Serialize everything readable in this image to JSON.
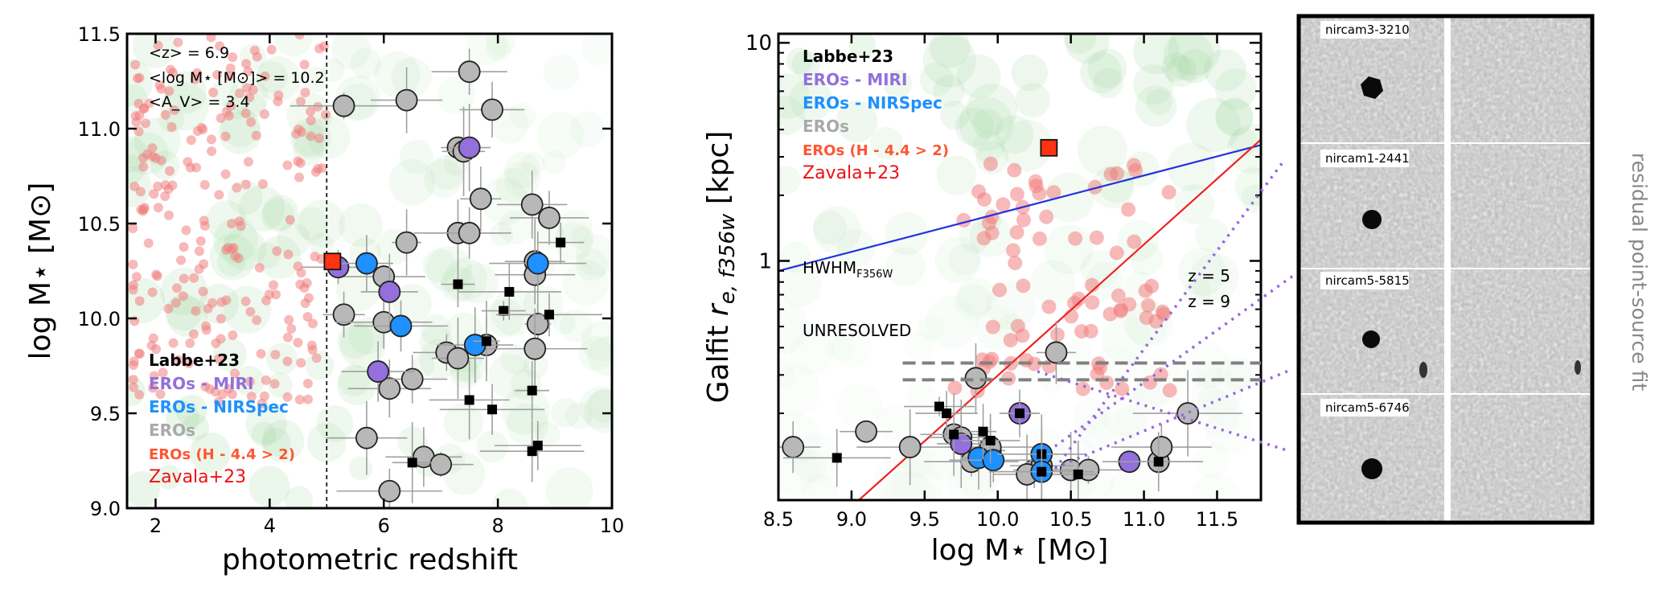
{
  "chart_data": [
    {
      "type": "scatter",
      "xlabel": "photometric redshift",
      "ylabel": "log M⋆ [M⊙]",
      "xlim": [
        1.5,
        10
      ],
      "ylim": [
        9.0,
        11.5
      ],
      "xticks": [
        2,
        4,
        6,
        8,
        10
      ],
      "yticks": [
        9.0,
        9.5,
        10.0,
        10.5,
        11.0,
        11.5
      ],
      "xtick_labels": [
        "2",
        "4",
        "6",
        "8",
        "10"
      ],
      "ytick_labels": [
        "9.0",
        "9.5",
        "10.0",
        "10.5",
        "11.0",
        "11.5"
      ],
      "annotations": [
        "<z> = 6.9",
        "<log M⋆ [M⊙]> = 10.2",
        "<A_V> = 3.4"
      ],
      "vline_x": 5.0,
      "legend_placement": "bottom-left",
      "legend_entries": [
        {
          "label": "Labbe+23",
          "color": "#000000"
        },
        {
          "label": "EROs - MIRI",
          "color": "#9370db"
        },
        {
          "label": "EROs - NIRSpec",
          "color": "#1e90ff"
        },
        {
          "label": "EROs",
          "color": "#a9a9a9"
        },
        {
          "label": "EROs (H - 4.4 > 2)",
          "color": "#ff5533"
        },
        {
          "label": "Zavala+23",
          "color": "#ee1111"
        }
      ],
      "series": [
        {
          "kind": "eros_gray",
          "points": [
            [
              5.3,
              11.12
            ],
            [
              6.4,
              11.15
            ],
            [
              7.5,
              11.3
            ],
            [
              7.9,
              11.1
            ],
            [
              7.3,
              10.9
            ],
            [
              7.4,
              10.88
            ],
            [
              7.7,
              10.63
            ],
            [
              8.6,
              10.6
            ],
            [
              8.9,
              10.53
            ],
            [
              7.3,
              10.45
            ],
            [
              6.4,
              10.4
            ],
            [
              7.5,
              10.45
            ],
            [
              8.65,
              10.3
            ],
            [
              8.65,
              10.23
            ],
            [
              6.0,
              10.22
            ],
            [
              5.3,
              10.02
            ],
            [
              6.0,
              9.98
            ],
            [
              8.7,
              9.97
            ],
            [
              7.8,
              9.86
            ],
            [
              8.65,
              9.84
            ],
            [
              7.1,
              9.82
            ],
            [
              7.3,
              9.79
            ],
            [
              6.1,
              9.63
            ],
            [
              6.5,
              9.68
            ],
            [
              5.7,
              9.37
            ],
            [
              6.7,
              9.27
            ],
            [
              7.0,
              9.23
            ],
            [
              6.1,
              9.09
            ]
          ]
        },
        {
          "kind": "eros_miri",
          "points": [
            [
              7.5,
              10.9
            ],
            [
              5.2,
              10.27
            ],
            [
              6.1,
              10.14
            ],
            [
              5.9,
              9.72
            ]
          ]
        },
        {
          "kind": "eros_nirspec",
          "points": [
            [
              5.7,
              10.29
            ],
            [
              8.7,
              10.29
            ],
            [
              6.3,
              9.96
            ],
            [
              7.6,
              9.86
            ]
          ]
        },
        {
          "kind": "labbe",
          "points": [
            [
              9.1,
              10.4
            ],
            [
              7.3,
              10.18
            ],
            [
              8.2,
              10.14
            ],
            [
              8.1,
              10.04
            ],
            [
              8.9,
              10.02
            ],
            [
              7.8,
              9.88
            ],
            [
              7.5,
              9.57
            ],
            [
              7.9,
              9.52
            ],
            [
              8.6,
              9.62
            ],
            [
              8.6,
              9.3
            ],
            [
              8.7,
              9.33
            ],
            [
              6.5,
              9.24
            ]
          ]
        },
        {
          "kind": "ero_red_square",
          "points": [
            [
              5.1,
              10.3
            ]
          ]
        }
      ]
    },
    {
      "type": "scatter",
      "xlabel": "log M⋆ [M⊙]",
      "ylabel": "Galfit r_e,f356w [kpc]",
      "xlim": [
        8.5,
        11.8
      ],
      "ylim": [
        0.08,
        11.0
      ],
      "yscale": "log",
      "xticks": [
        8.5,
        9.0,
        9.5,
        10.0,
        10.5,
        11.0,
        11.5
      ],
      "xtick_labels": [
        "8.5",
        "9.0",
        "9.5",
        "10.0",
        "10.5",
        "11.0",
        "11.5"
      ],
      "yticks": [
        1,
        10
      ],
      "ytick_labels": [
        "1",
        "10"
      ],
      "hwhm_label": "HWHM",
      "hwhm_subscript": "F356W",
      "hwhm_lines": [
        {
          "label": "z = 5",
          "y": 0.34
        },
        {
          "label": "z = 9",
          "y": 0.285
        }
      ],
      "unresolved_label": "UNRESOLVED",
      "legend_placement": "top-left",
      "legend_entries": [
        {
          "label": "Labbe+23",
          "color": "#000000"
        },
        {
          "label": "EROs - MIRI",
          "color": "#9370db"
        },
        {
          "label": "EROs - NIRSpec",
          "color": "#1e90ff"
        },
        {
          "label": "EROs",
          "color": "#a9a9a9"
        },
        {
          "label": "EROs (H - 4.4 > 2)",
          "color": "#ff5533"
        },
        {
          "label": "Zavala+23",
          "color": "#ee1111"
        }
      ],
      "series": [
        {
          "kind": "eros_gray",
          "points": [
            [
              8.6,
              0.14
            ],
            [
              9.1,
              0.165
            ],
            [
              9.4,
              0.14
            ],
            [
              9.85,
              0.29
            ],
            [
              10.4,
              0.38
            ],
            [
              11.3,
              0.2
            ],
            [
              9.7,
              0.16
            ],
            [
              9.75,
              0.155
            ],
            [
              9.95,
              0.135
            ],
            [
              10.25,
              0.11
            ],
            [
              10.5,
              0.11
            ],
            [
              10.62,
              0.11
            ],
            [
              11.1,
              0.12
            ],
            [
              11.12,
              0.14
            ],
            [
              10.3,
              0.115
            ],
            [
              9.82,
              0.12
            ],
            [
              9.95,
              0.14
            ],
            [
              10.2,
              0.105
            ]
          ]
        },
        {
          "kind": "eros_miri",
          "points": [
            [
              10.15,
              0.2
            ],
            [
              9.75,
              0.145
            ],
            [
              10.9,
              0.12
            ]
          ]
        },
        {
          "kind": "eros_nirspec",
          "points": [
            [
              9.87,
              0.125
            ],
            [
              9.97,
              0.122
            ],
            [
              10.3,
              0.13
            ],
            [
              10.3,
              0.108
            ]
          ]
        },
        {
          "kind": "labbe",
          "points": [
            [
              9.6,
              0.215
            ],
            [
              9.65,
              0.2
            ],
            [
              9.7,
              0.16
            ],
            [
              9.9,
              0.165
            ],
            [
              9.95,
              0.15
            ],
            [
              10.15,
              0.2
            ],
            [
              10.3,
              0.13
            ],
            [
              10.3,
              0.108
            ],
            [
              10.55,
              0.105
            ],
            [
              11.1,
              0.12
            ],
            [
              8.9,
              0.125
            ]
          ]
        },
        {
          "kind": "ero_red_square",
          "points": [
            [
              10.35,
              3.3
            ]
          ]
        }
      ],
      "lines": [
        {
          "color": "#2233dd",
          "from": [
            8.5,
            0.9
          ],
          "to": [
            11.8,
            3.4
          ]
        },
        {
          "color": "#ee2222",
          "from": [
            9.05,
            0.08
          ],
          "to": [
            11.8,
            3.6
          ]
        }
      ]
    }
  ],
  "cutouts": {
    "labels": [
      "nircam3-3210",
      "nircam1-2441",
      "nircam5-5815",
      "nircam5-6746"
    ],
    "side_label": "residual point-source fit"
  },
  "colors": {
    "red_cloud": "#f08080",
    "green_density": "#9ed69e",
    "gray_marker": "#b8b8b8",
    "miri": "#9370db",
    "nirspec": "#1e90ff",
    "ero_red": "#ff3311",
    "zavala": "#ee1111",
    "blue_line": "#2233dd",
    "dotted": "#9966dd"
  }
}
